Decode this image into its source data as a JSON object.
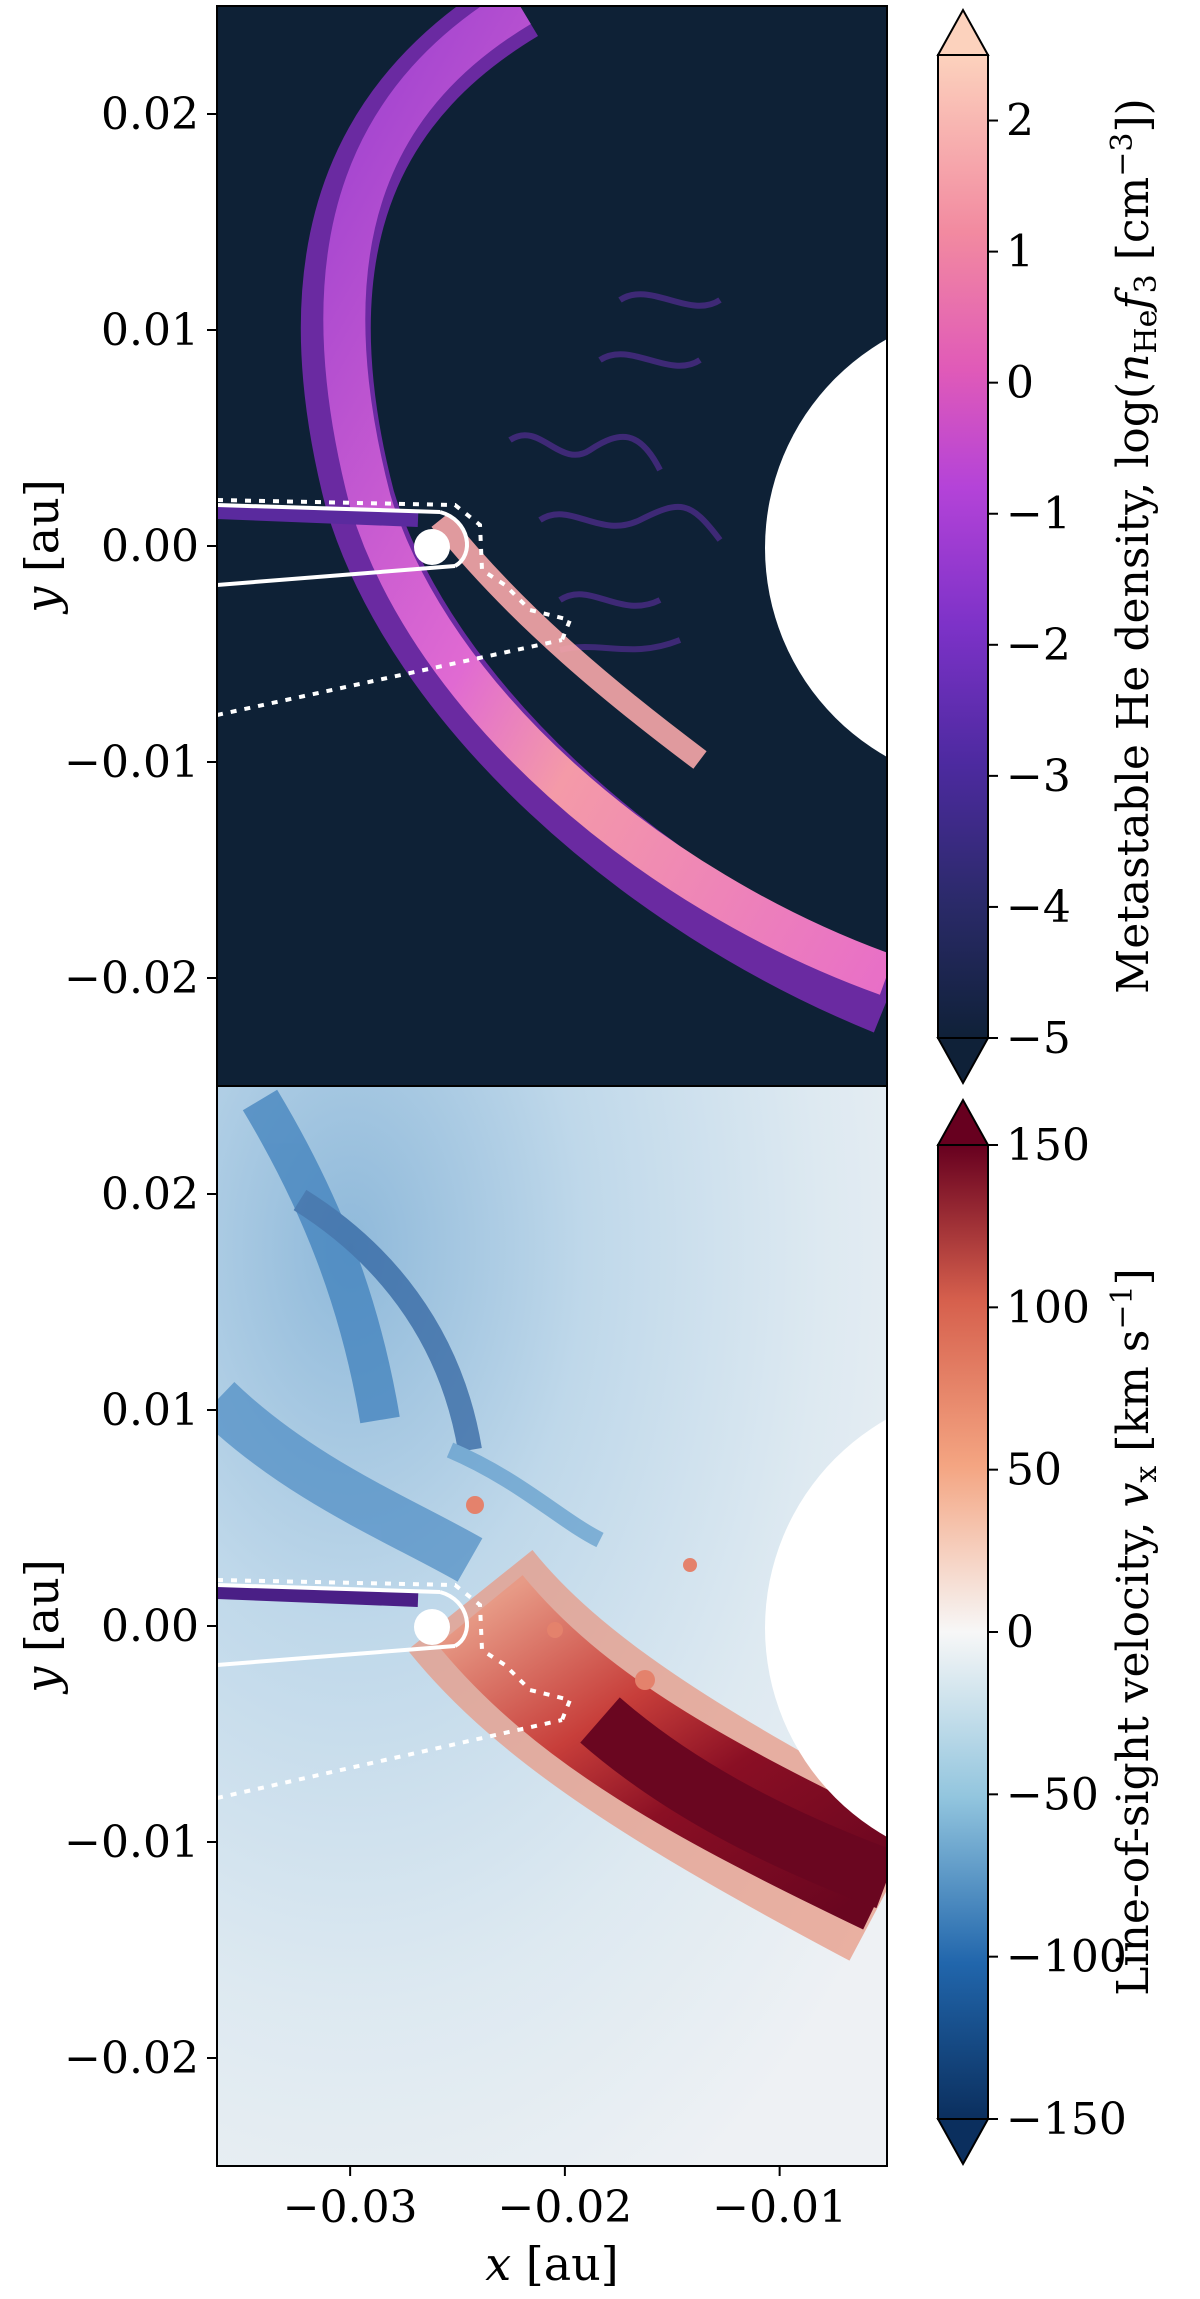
{
  "chart_data": [
    {
      "type": "heatmap",
      "panel": "top",
      "colormap": "magma",
      "colorbar_label": "Metastable He density, log(n_He f_3 [cm^-3])",
      "colorbar_label_parts": [
        "Metastable He density, log(",
        "n",
        "He",
        "f",
        "3",
        " [cm",
        "−3",
        "])"
      ],
      "colorbar_ticks": [
        -5,
        -4,
        -3,
        -2,
        -1,
        0,
        1,
        2
      ],
      "colorbar_tick_labels": [
        "−5",
        "−4",
        "−3",
        "−2",
        "−1",
        "0",
        "1",
        "2"
      ],
      "colorbar_range": [
        -5,
        2.5
      ],
      "colorbar_extend": "both",
      "x_range": [
        -0.0362,
        -0.005
      ],
      "y_range": [
        -0.025,
        0.025
      ],
      "y_ticks": [
        0.02,
        0.01,
        0.0,
        -0.01,
        -0.02
      ],
      "y_tick_labels": [
        "0.02",
        "0.01",
        "0.00",
        "−0.01",
        "−0.02"
      ],
      "ylabel_parts": [
        "y",
        " [au]"
      ],
      "colors": {
        "background": "#0e2136",
        "ring": "#d94fe0",
        "bright": "#f8a4a8",
        "dim": "#5a2a9e",
        "cb_low": "#0f2138",
        "cb_high": "#fcd2bd"
      }
    },
    {
      "type": "heatmap",
      "panel": "bottom",
      "colormap": "RdBu_r",
      "colorbar_label": "Line-of-sight velocity, v_x [km s^-1]",
      "colorbar_label_parts": [
        "Line-of-sight velocity, ",
        "v",
        "x",
        " [km s",
        "−1",
        "]"
      ],
      "colorbar_ticks": [
        -150,
        -100,
        -50,
        0,
        50,
        100,
        150
      ],
      "colorbar_tick_labels": [
        "−150",
        "−100",
        "−50",
        "0",
        "50",
        "100",
        "150"
      ],
      "colorbar_range": [
        -150,
        150
      ],
      "colorbar_extend": "both",
      "x_range": [
        -0.0362,
        -0.005
      ],
      "y_range": [
        -0.025,
        0.025
      ],
      "x_ticks": [
        -0.03,
        -0.02,
        -0.01
      ],
      "x_tick_labels": [
        "−0.03",
        "−0.02",
        "−0.01"
      ],
      "y_ticks": [
        0.02,
        0.01,
        0.0,
        -0.01,
        -0.02
      ],
      "y_tick_labels": [
        "0.02",
        "0.01",
        "0.00",
        "−0.01",
        "−0.02"
      ],
      "xlabel_parts": [
        "x",
        " [au]"
      ],
      "ylabel_parts": [
        "y",
        " [au]"
      ],
      "colors": {
        "background": "#d9e8f2",
        "blue": "#2f6fae",
        "red": "#7a0a1f",
        "cb_low": "#0b2f5e",
        "cb_mid": "#f7f7f7",
        "cb_high": "#67001f"
      }
    }
  ]
}
